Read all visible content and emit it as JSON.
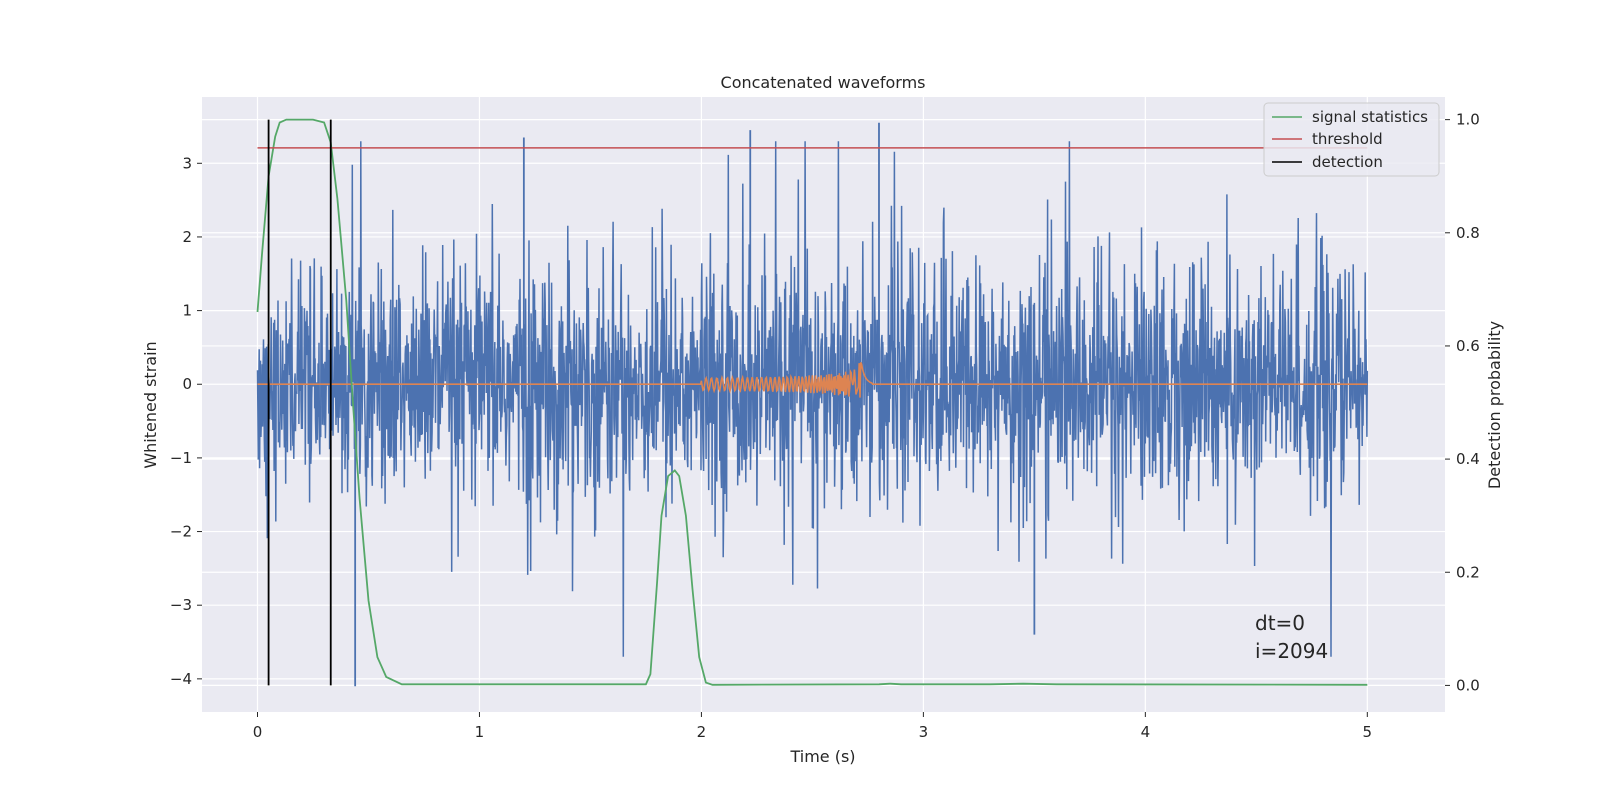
{
  "chart_data": {
    "type": "line",
    "title": "Concatenated waveforms",
    "xlabel": "Time (s)",
    "ylabel_left": "Whitened strain",
    "ylabel_right": "Detection probability",
    "xlim": [
      -0.25,
      5.35
    ],
    "ylim_left": [
      -4.45,
      3.9
    ],
    "ylim_right": [
      -0.047,
      1.04
    ],
    "x_ticks": [
      0,
      1,
      2,
      3,
      4,
      5
    ],
    "y_left_ticks": [
      -4,
      -3,
      -2,
      -1,
      0,
      1,
      2,
      3
    ],
    "y_right_ticks": [
      0.0,
      0.2,
      0.4,
      0.6,
      0.8,
      1.0
    ],
    "y_left_tick_labels": [
      "−4",
      "−3",
      "−2",
      "−1",
      "0",
      "1",
      "2",
      "3"
    ],
    "y_right_tick_labels": [
      "0.0",
      "0.2",
      "0.4",
      "0.6",
      "0.8",
      "1.0"
    ],
    "grid": true,
    "legend_position": "top-right",
    "legend": [
      {
        "label": "signal statistics",
        "color": "#55a868"
      },
      {
        "label": "threshold",
        "color": "#c44e52"
      },
      {
        "label": "detection",
        "color": "#000000"
      }
    ],
    "series": [
      {
        "role": "whitened-strain-noise",
        "axis": "left",
        "color": "#4c72b0",
        "x_range": [
          0,
          5
        ],
        "amplitude_typical": 1.2,
        "extremes": [
          {
            "x": 0.44,
            "y": -4.1
          },
          {
            "x": 1.2,
            "y": 3.35
          },
          {
            "x": 2.22,
            "y": 3.45
          },
          {
            "x": 2.8,
            "y": 3.55
          },
          {
            "x": 3.5,
            "y": -3.4
          }
        ]
      },
      {
        "role": "injected-chirp",
        "axis": "left",
        "color": "#dd8452",
        "x_range": [
          0,
          5
        ],
        "chirp_start": 2.0,
        "chirp_peak": 2.72,
        "chirp_peak_amplitude": 0.65
      },
      {
        "role": "signal-statistics",
        "axis": "right",
        "color": "#55a868",
        "points": [
          [
            0.0,
            0.66
          ],
          [
            0.02,
            0.76
          ],
          [
            0.05,
            0.9
          ],
          [
            0.08,
            0.97
          ],
          [
            0.1,
            0.995
          ],
          [
            0.13,
            1.0
          ],
          [
            0.25,
            1.0
          ],
          [
            0.3,
            0.995
          ],
          [
            0.33,
            0.96
          ],
          [
            0.36,
            0.86
          ],
          [
            0.4,
            0.68
          ],
          [
            0.43,
            0.5
          ],
          [
            0.46,
            0.33
          ],
          [
            0.5,
            0.15
          ],
          [
            0.54,
            0.05
          ],
          [
            0.58,
            0.015
          ],
          [
            0.65,
            0.002
          ],
          [
            1.75,
            0.002
          ],
          [
            1.77,
            0.02
          ],
          [
            1.8,
            0.18
          ],
          [
            1.82,
            0.3
          ],
          [
            1.85,
            0.37
          ],
          [
            1.88,
            0.38
          ],
          [
            1.9,
            0.37
          ],
          [
            1.93,
            0.3
          ],
          [
            1.96,
            0.17
          ],
          [
            1.99,
            0.05
          ],
          [
            2.02,
            0.005
          ],
          [
            2.05,
            0.001
          ],
          [
            2.8,
            0.002
          ],
          [
            2.85,
            0.003
          ],
          [
            2.9,
            0.002
          ],
          [
            3.3,
            0.002
          ],
          [
            3.45,
            0.003
          ],
          [
            3.6,
            0.002
          ],
          [
            5.0,
            0.001
          ]
        ]
      },
      {
        "role": "threshold",
        "axis": "right",
        "color": "#c44e52",
        "y": 0.95,
        "x_range": [
          0,
          5
        ]
      },
      {
        "role": "detection",
        "axis": "right",
        "color": "#000000",
        "x": [
          0.05,
          0.33
        ],
        "y_range": [
          0.0,
          1.0
        ]
      }
    ],
    "annotations": [
      "dt=0",
      "i=2094"
    ]
  }
}
